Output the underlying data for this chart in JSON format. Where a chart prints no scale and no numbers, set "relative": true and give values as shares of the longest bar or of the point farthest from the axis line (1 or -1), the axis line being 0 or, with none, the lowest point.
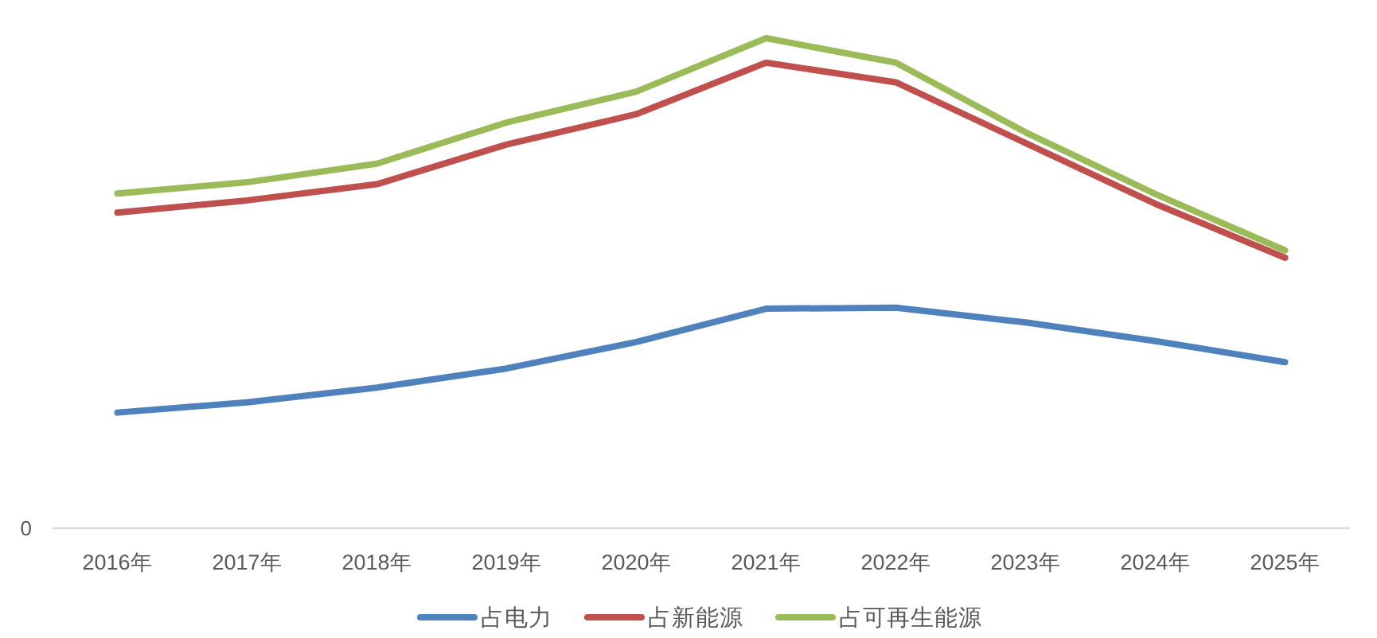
{
  "chart_data": {
    "type": "line",
    "relative": true,
    "legend": "bottom",
    "annotations": [
      "0"
    ],
    "categories": [
      "2016年",
      "2017年",
      "2018年",
      "2019年",
      "2020年",
      "2021年",
      "2022年",
      "2023年",
      "2024年",
      "2025年"
    ],
    "series": [
      {
        "name": "占电力",
        "color": "#4f81bd",
        "values": [
          0.236,
          0.257,
          0.287,
          0.326,
          0.38,
          0.448,
          0.45,
          0.42,
          0.382,
          0.339
        ]
      },
      {
        "name": "占新能源",
        "color": "#c0504d",
        "values": [
          0.644,
          0.669,
          0.702,
          0.783,
          0.845,
          0.95,
          0.91,
          0.786,
          0.662,
          0.552
        ]
      },
      {
        "name": "占可再生能源",
        "color": "#9bbb59",
        "values": [
          0.683,
          0.706,
          0.744,
          0.828,
          0.891,
          1,
          0.95,
          0.808,
          0.682,
          0.567
        ]
      }
    ]
  }
}
